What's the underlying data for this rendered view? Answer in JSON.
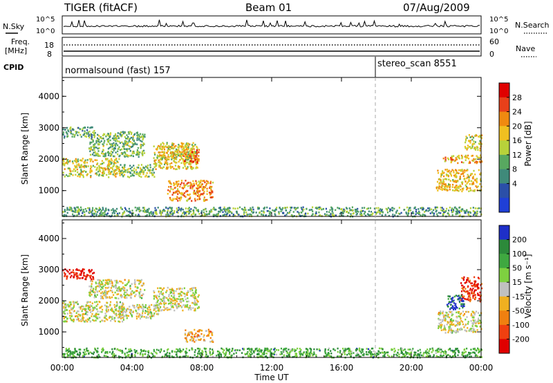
{
  "header": {
    "title": "TIGER (fitACF)",
    "beam": "Beam 01",
    "date": "07/Aug/2009"
  },
  "left_labels": {
    "nsky": "N.Sky",
    "freq_line1": "Freq.",
    "freq_line2": "[MHz]",
    "cpid": "CPID"
  },
  "right_labels": {
    "nsearch": "N.Search",
    "nave": "Nave"
  },
  "noise_axis": {
    "left_ticks": [
      "10^5",
      "10^0"
    ],
    "right_ticks": [
      "10^5",
      "10^0"
    ]
  },
  "freq_axis": {
    "left_ticks": [
      "18",
      "8"
    ],
    "right_ticks": [
      "60",
      "0"
    ]
  },
  "cpid_segments": [
    {
      "label": "normalsound (fast) 157",
      "start_hour": 0
    },
    {
      "label": "stereo_scan 8551",
      "start_hour": 18
    }
  ],
  "chart_data": [
    {
      "type": "heatmap",
      "parameter": "power",
      "ylabel": "Slant Range [km]",
      "ylim": [
        180,
        4600
      ],
      "yticks": [
        "1000",
        "2000",
        "3000",
        "4000"
      ],
      "xlim_hours": [
        0,
        24
      ],
      "colorbar": {
        "label": "Power [dB]",
        "ticks": [
          "4",
          "8",
          "12",
          "16",
          "20",
          "24",
          "28"
        ],
        "colors": [
          "#1f3fd6",
          "#2b4fa8",
          "#3f8a7a",
          "#58a860",
          "#b8d23a",
          "#f0c020",
          "#f08a10",
          "#e8401a",
          "#e00000"
        ]
      },
      "echo_regions": [
        {
          "t0": 0.0,
          "t1": 3.3,
          "r0": 1450,
          "r1": 2050,
          "level": 0.55
        },
        {
          "t0": 3.3,
          "t1": 5.3,
          "r0": 1450,
          "r1": 1850,
          "level": 0.45
        },
        {
          "t0": 5.2,
          "t1": 7.8,
          "r0": 1700,
          "r1": 2450,
          "level": 0.6
        },
        {
          "t0": 6.9,
          "t1": 7.8,
          "r0": 1900,
          "r1": 2350,
          "level": 0.85
        },
        {
          "t0": 5.6,
          "t1": 7.6,
          "r0": 2000,
          "r1": 2550,
          "level": 0.55
        },
        {
          "t0": 1.5,
          "t1": 4.7,
          "r0": 2100,
          "r1": 2900,
          "level": 0.4
        },
        {
          "t0": 6.0,
          "t1": 8.6,
          "r0": 700,
          "r1": 1350,
          "level": 0.7
        },
        {
          "t0": 0.0,
          "t1": 1.8,
          "r0": 2700,
          "r1": 3050,
          "level": 0.35
        },
        {
          "t0": 0.0,
          "t1": 24.0,
          "r0": 200,
          "r1": 500,
          "level": 0.35
        },
        {
          "t0": 21.4,
          "t1": 24.0,
          "r0": 1000,
          "r1": 1700,
          "level": 0.6
        },
        {
          "t0": 21.8,
          "t1": 24.0,
          "r0": 1900,
          "r1": 2150,
          "level": 0.65
        },
        {
          "t0": 23.0,
          "t1": 24.0,
          "r0": 2300,
          "r1": 2800,
          "level": 0.55
        }
      ]
    },
    {
      "type": "heatmap",
      "parameter": "velocity",
      "ylabel": "Slant Range [km]",
      "ylim": [
        180,
        4600
      ],
      "yticks": [
        "1000",
        "2000",
        "3000",
        "4000"
      ],
      "xlabel": "Time UT",
      "xticks": [
        "00:00",
        "04:00",
        "08:00",
        "12:00",
        "16:00",
        "20:00",
        "00:00"
      ],
      "xlim_hours": [
        0,
        24
      ],
      "colorbar": {
        "label": "Velocity [m s⁻¹]",
        "ticks": [
          "200",
          "100",
          "50",
          "15",
          "-15",
          "-50",
          "-100",
          "-200"
        ],
        "colors": [
          "#1e2fc8",
          "#2c8a3a",
          "#3fa840",
          "#7ed040",
          "#c0c0c0",
          "#f0b020",
          "#f08010",
          "#f04010",
          "#e00000"
        ]
      },
      "echo_regions": [
        {
          "t0": 0.0,
          "t1": 3.5,
          "r0": 1350,
          "r1": 2000,
          "level": 0.5
        },
        {
          "t0": 3.2,
          "t1": 5.5,
          "r0": 1450,
          "r1": 1900,
          "level": 0.5
        },
        {
          "t0": 5.2,
          "t1": 7.8,
          "r0": 1700,
          "r1": 2450,
          "level": 0.5
        },
        {
          "t0": 1.5,
          "t1": 4.7,
          "r0": 2100,
          "r1": 2700,
          "level": 0.5
        },
        {
          "t0": 7.0,
          "t1": 8.6,
          "r0": 700,
          "r1": 1100,
          "level": 0.62
        },
        {
          "t0": 0.0,
          "t1": 1.8,
          "r0": 2700,
          "r1": 3050,
          "level": 0.95
        },
        {
          "t0": 0.0,
          "t1": 24.0,
          "r0": 200,
          "r1": 500,
          "level": 0.28
        },
        {
          "t0": 21.5,
          "t1": 24.0,
          "r0": 1000,
          "r1": 1700,
          "level": 0.5
        },
        {
          "t0": 22.8,
          "t1": 24.0,
          "r0": 2000,
          "r1": 2800,
          "level": 0.9
        },
        {
          "t0": 22.0,
          "t1": 23.0,
          "r0": 1700,
          "r1": 2200,
          "level": 0.1
        }
      ]
    }
  ]
}
